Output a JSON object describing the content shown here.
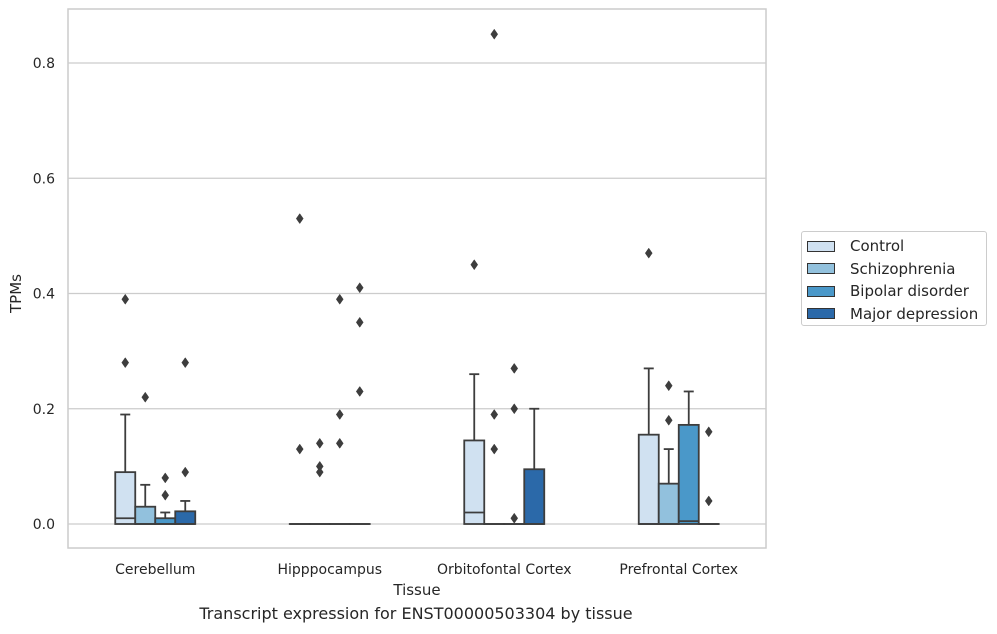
{
  "chart_data": {
    "type": "box",
    "xlabel": "Tissue",
    "ylabel": "TPMs",
    "caption": "Transcript expression for ENST00000503304 by tissue",
    "ylim": [
      -0.04,
      0.89
    ],
    "yticks": [
      0.0,
      0.2,
      0.4,
      0.6,
      0.8
    ],
    "ytick_labels": [
      "0.0",
      "0.2",
      "0.4",
      "0.6",
      "0.8"
    ],
    "grid": "y",
    "legend_position": "right",
    "categories": [
      "Cerebellum",
      "Hipppocampus",
      "Orbitofontal Cortex",
      "Prefrontal Cortex"
    ],
    "series": [
      {
        "name": "Control",
        "color": "#d0e1f1",
        "boxes": [
          {
            "q1": 0.0,
            "median": 0.01,
            "q3": 0.09,
            "whisker_low": 0.0,
            "whisker_high": 0.19,
            "outliers": [
              0.39,
              0.28
            ]
          },
          {
            "q1": 0.0,
            "median": 0.0,
            "q3": 0.0,
            "whisker_low": 0.0,
            "whisker_high": 0.0,
            "outliers": [
              0.53,
              0.13
            ]
          },
          {
            "q1": 0.0,
            "median": 0.02,
            "q3": 0.145,
            "whisker_low": 0.0,
            "whisker_high": 0.26,
            "outliers": [
              0.45
            ]
          },
          {
            "q1": 0.0,
            "median": 0.0,
            "q3": 0.155,
            "whisker_low": 0.0,
            "whisker_high": 0.27,
            "outliers": [
              0.47
            ]
          }
        ]
      },
      {
        "name": "Schizophrenia",
        "color": "#92c1dd",
        "boxes": [
          {
            "q1": 0.0,
            "median": 0.0,
            "q3": 0.03,
            "whisker_low": 0.0,
            "whisker_high": 0.068,
            "outliers": [
              0.22
            ]
          },
          {
            "q1": 0.0,
            "median": 0.0,
            "q3": 0.0,
            "whisker_low": 0.0,
            "whisker_high": 0.0,
            "outliers": [
              0.14,
              0.1,
              0.09
            ]
          },
          {
            "q1": 0.0,
            "median": 0.0,
            "q3": 0.0,
            "whisker_low": 0.0,
            "whisker_high": 0.0,
            "outliers": [
              0.85,
              0.19,
              0.13
            ]
          },
          {
            "q1": 0.0,
            "median": 0.0,
            "q3": 0.07,
            "whisker_low": 0.0,
            "whisker_high": 0.13,
            "outliers": [
              0.24,
              0.18
            ]
          }
        ]
      },
      {
        "name": "Bipolar disorder",
        "color": "#4a98c9",
        "boxes": [
          {
            "q1": 0.0,
            "median": 0.0,
            "q3": 0.01,
            "whisker_low": 0.0,
            "whisker_high": 0.02,
            "outliers": [
              0.08,
              0.05
            ]
          },
          {
            "q1": 0.0,
            "median": 0.0,
            "q3": 0.0,
            "whisker_low": 0.0,
            "whisker_high": 0.0,
            "outliers": [
              0.39,
              0.19,
              0.14
            ]
          },
          {
            "q1": 0.0,
            "median": 0.0,
            "q3": 0.0,
            "whisker_low": 0.0,
            "whisker_high": 0.0,
            "outliers": [
              0.27,
              0.2,
              0.01
            ]
          },
          {
            "q1": 0.0,
            "median": 0.005,
            "q3": 0.172,
            "whisker_low": 0.0,
            "whisker_high": 0.23,
            "outliers": []
          }
        ]
      },
      {
        "name": "Major depression",
        "color": "#2b69a9",
        "boxes": [
          {
            "q1": 0.0,
            "median": 0.0,
            "q3": 0.022,
            "whisker_low": 0.0,
            "whisker_high": 0.04,
            "outliers": [
              0.28,
              0.09
            ]
          },
          {
            "q1": 0.0,
            "median": 0.0,
            "q3": 0.0,
            "whisker_low": 0.0,
            "whisker_high": 0.0,
            "outliers": [
              0.41,
              0.35,
              0.23
            ]
          },
          {
            "q1": 0.0,
            "median": 0.0,
            "q3": 0.095,
            "whisker_low": 0.0,
            "whisker_high": 0.2,
            "outliers": []
          },
          {
            "q1": 0.0,
            "median": 0.0,
            "q3": 0.0,
            "whisker_low": 0.0,
            "whisker_high": 0.0,
            "outliers": [
              0.16,
              0.04
            ]
          }
        ]
      }
    ]
  }
}
